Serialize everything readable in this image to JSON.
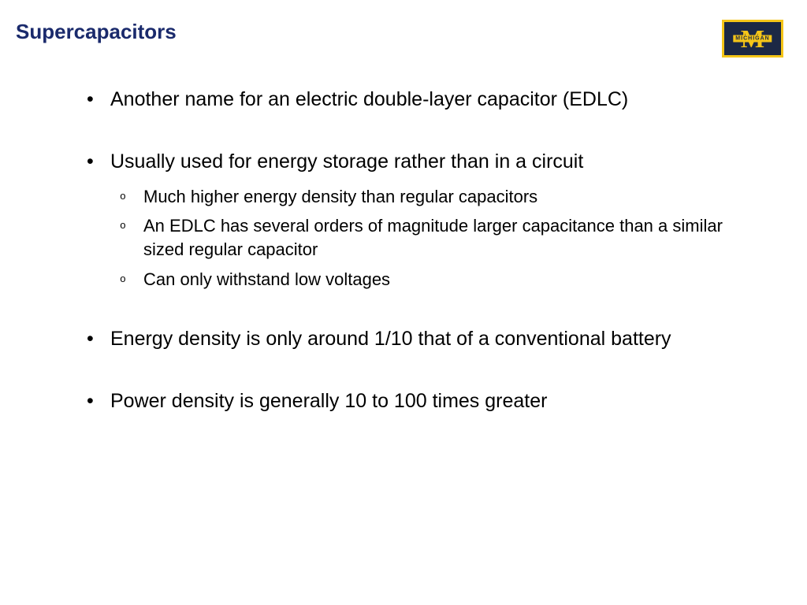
{
  "slide": {
    "title": "Supercapacitors",
    "title_color": "#1a2a6c",
    "title_fontsize": 26,
    "background_color": "#ffffff",
    "body_text_color": "#000000",
    "body_fontsize": 25,
    "sub_fontsize": 22,
    "bullets": [
      {
        "text": "Another name for an electric double-layer capacitor (EDLC)",
        "subs": []
      },
      {
        "text": "Usually used for energy storage rather than in a circuit",
        "subs": [
          "Much higher energy density than regular capacitors",
          "An EDLC has several orders of magnitude larger capacitance than a similar sized regular capacitor",
          "Can only withstand low voltages"
        ]
      },
      {
        "text": "Energy density is only around 1/10 that of a conventional battery",
        "subs": []
      },
      {
        "text": "Power density is generally 10 to 100 times greater",
        "subs": []
      }
    ]
  },
  "logo": {
    "letter": "M",
    "banner_text": "MICHIGAN",
    "primary_color": "#1c2845",
    "accent_color": "#f5c518"
  }
}
